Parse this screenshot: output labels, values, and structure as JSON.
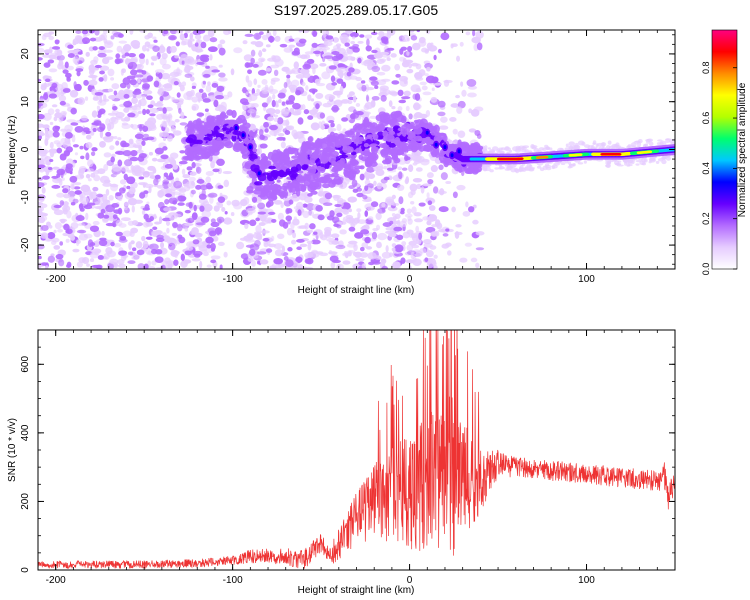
{
  "title": "S197.2025.289.05.17.G05",
  "chart_data": [
    {
      "type": "heatmap",
      "name": "spectrogram",
      "xlabel": "Height of straight line (km)",
      "ylabel": "Frequency (Hz)",
      "xlim": [
        -210,
        150
      ],
      "ylim": [
        -25,
        25
      ],
      "xticks": [
        -200,
        -100,
        0,
        100
      ],
      "yticks": [
        -20,
        -10,
        0,
        10,
        20
      ],
      "colorbar": {
        "label": "Normalized spectral amplitude",
        "range": [
          0.0,
          0.95
        ],
        "ticks": [
          0.0,
          0.2,
          0.4,
          0.6,
          0.8
        ],
        "colors": [
          "#ffffff",
          "#e6ccff",
          "#b36bff",
          "#6600ff",
          "#0000ff",
          "#00c8ff",
          "#00ff6e",
          "#b4ff00",
          "#ffff00",
          "#ff8c00",
          "#ff0000",
          "#ff0080"
        ]
      },
      "ridge": {
        "description_points_x": [
          -120,
          -100,
          -95,
          -90,
          -85,
          -60,
          -40,
          -20,
          0,
          10,
          20,
          30,
          40,
          60,
          80,
          100,
          120,
          150
        ],
        "description_points_y": [
          2,
          4,
          3,
          0,
          -6,
          -4,
          -2,
          2,
          3,
          3,
          0,
          -2,
          -2,
          -2,
          -1.5,
          -1,
          -1,
          0
        ]
      }
    },
    {
      "type": "line",
      "name": "snr",
      "xlabel": "Height of straight line (km)",
      "ylabel": "SNR (10 * v/v)",
      "xlim": [
        -210,
        150
      ],
      "ylim": [
        0,
        700
      ],
      "xticks": [
        -200,
        -100,
        0,
        100
      ],
      "yticks": [
        0,
        200,
        400,
        600
      ],
      "series": [
        {
          "name": "SNR",
          "color": "#ee3333",
          "envelope_x": [
            -210,
            -150,
            -120,
            -100,
            -90,
            -70,
            -60,
            -50,
            -45,
            -40,
            -30,
            -20,
            -10,
            0,
            10,
            20,
            25,
            30,
            40,
            50,
            60,
            80,
            100,
            120,
            140,
            144,
            146,
            150
          ],
          "envelope_mid": [
            15,
            16,
            20,
            28,
            40,
            40,
            30,
            80,
            40,
            70,
            150,
            200,
            230,
            230,
            250,
            300,
            280,
            260,
            260,
            310,
            300,
            290,
            280,
            270,
            260,
            280,
            210,
            260
          ],
          "envelope_amp": [
            10,
            12,
            12,
            14,
            20,
            25,
            30,
            30,
            30,
            50,
            80,
            110,
            150,
            170,
            200,
            230,
            250,
            180,
            100,
            40,
            30,
            30,
            30,
            30,
            30,
            50,
            40,
            30
          ]
        }
      ]
    }
  ]
}
